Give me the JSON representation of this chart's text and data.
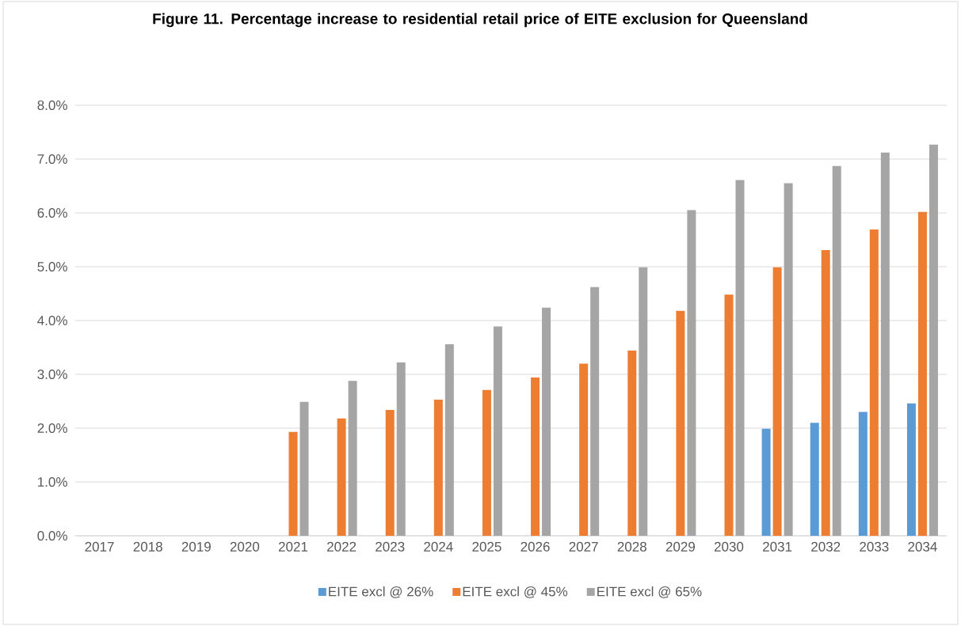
{
  "chart_data": {
    "type": "bar",
    "title": "Figure 11. Percentage increase to residential retail price of EITE exclusion for Queensland",
    "categories": [
      "2017",
      "2018",
      "2019",
      "2020",
      "2021",
      "2022",
      "2023",
      "2024",
      "2025",
      "2026",
      "2027",
      "2028",
      "2029",
      "2030",
      "2031",
      "2032",
      "2033",
      "2034"
    ],
    "series": [
      {
        "name": "EITE excl @ 26%",
        "color": "#5b9bd5",
        "values": [
          null,
          null,
          null,
          null,
          null,
          null,
          null,
          null,
          null,
          null,
          null,
          null,
          null,
          null,
          1.99,
          2.1,
          2.3,
          2.46
        ]
      },
      {
        "name": "EITE excl @ 45%",
        "color": "#ed7d31",
        "values": [
          null,
          null,
          null,
          null,
          1.93,
          2.18,
          2.34,
          2.53,
          2.71,
          2.94,
          3.2,
          3.44,
          4.18,
          4.48,
          4.99,
          5.31,
          5.69,
          6.02
        ]
      },
      {
        "name": "EITE excl @ 65%",
        "color": "#a5a5a5",
        "values": [
          null,
          null,
          null,
          null,
          2.49,
          2.88,
          3.22,
          3.56,
          3.89,
          4.24,
          4.62,
          4.99,
          6.05,
          6.61,
          6.55,
          6.87,
          7.12,
          7.27
        ]
      }
    ],
    "ylim": [
      0,
      8
    ],
    "yticks": [
      {
        "value": 0,
        "label": "0.0%"
      },
      {
        "value": 1,
        "label": "1.0%"
      },
      {
        "value": 2,
        "label": "2.0%"
      },
      {
        "value": 3,
        "label": "3.0%"
      },
      {
        "value": 4,
        "label": "4.0%"
      },
      {
        "value": 5,
        "label": "5.0%"
      },
      {
        "value": 6,
        "label": "6.0%"
      },
      {
        "value": 7,
        "label": "7.0%"
      },
      {
        "value": 8,
        "label": "8.0%"
      }
    ],
    "grid": "y",
    "legend": "bottom"
  }
}
